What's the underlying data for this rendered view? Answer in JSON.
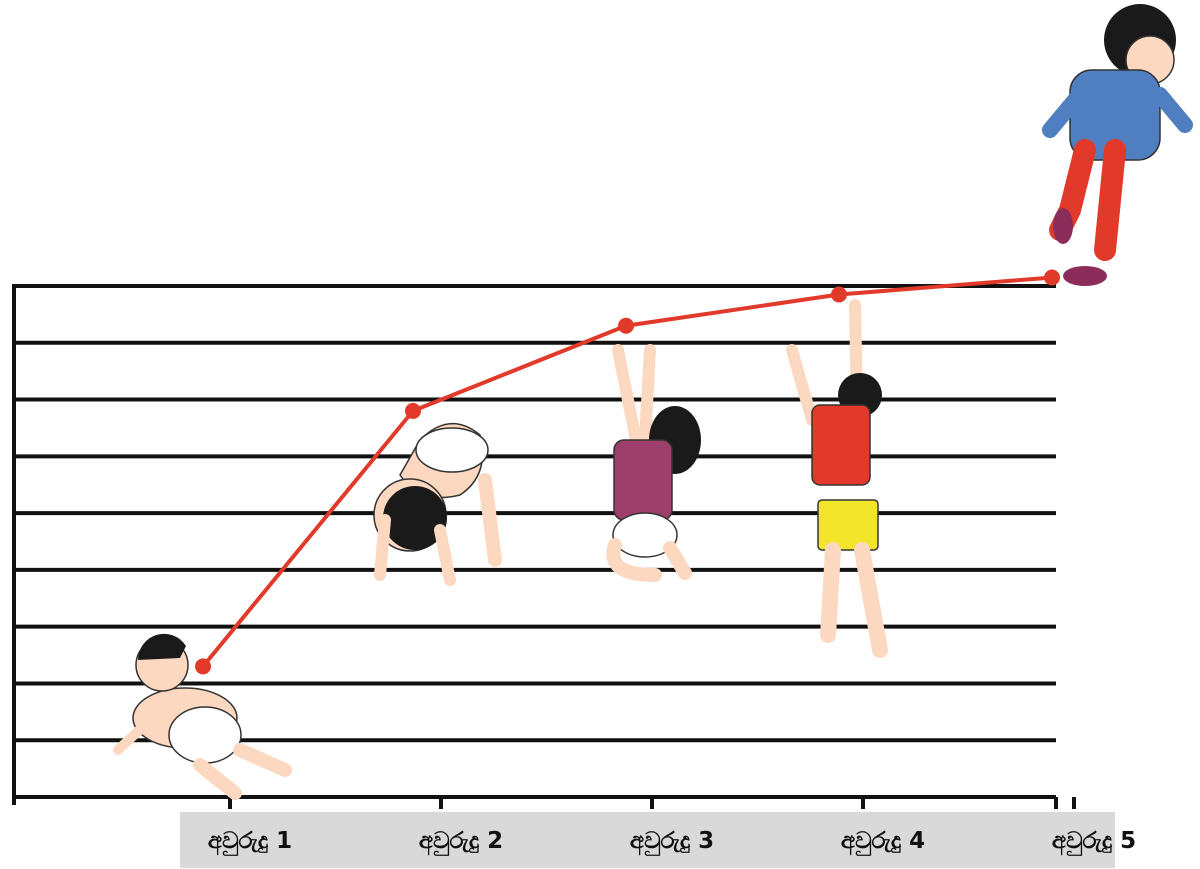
{
  "chart_data": {
    "type": "line",
    "categories": [
      "අවුරුදු 1",
      "අවුරුදු 2",
      "අවුරුදු 3",
      "අවුරුදු 4",
      "අවුරුදු 5"
    ],
    "values": [
      2.3,
      6.8,
      8.3,
      8.85,
      9.15
    ],
    "ylim": [
      0,
      9
    ],
    "grid": true,
    "colors": {
      "line": "#e23a2a",
      "grid": "#111111",
      "label_band": "#d9d9d9"
    }
  }
}
